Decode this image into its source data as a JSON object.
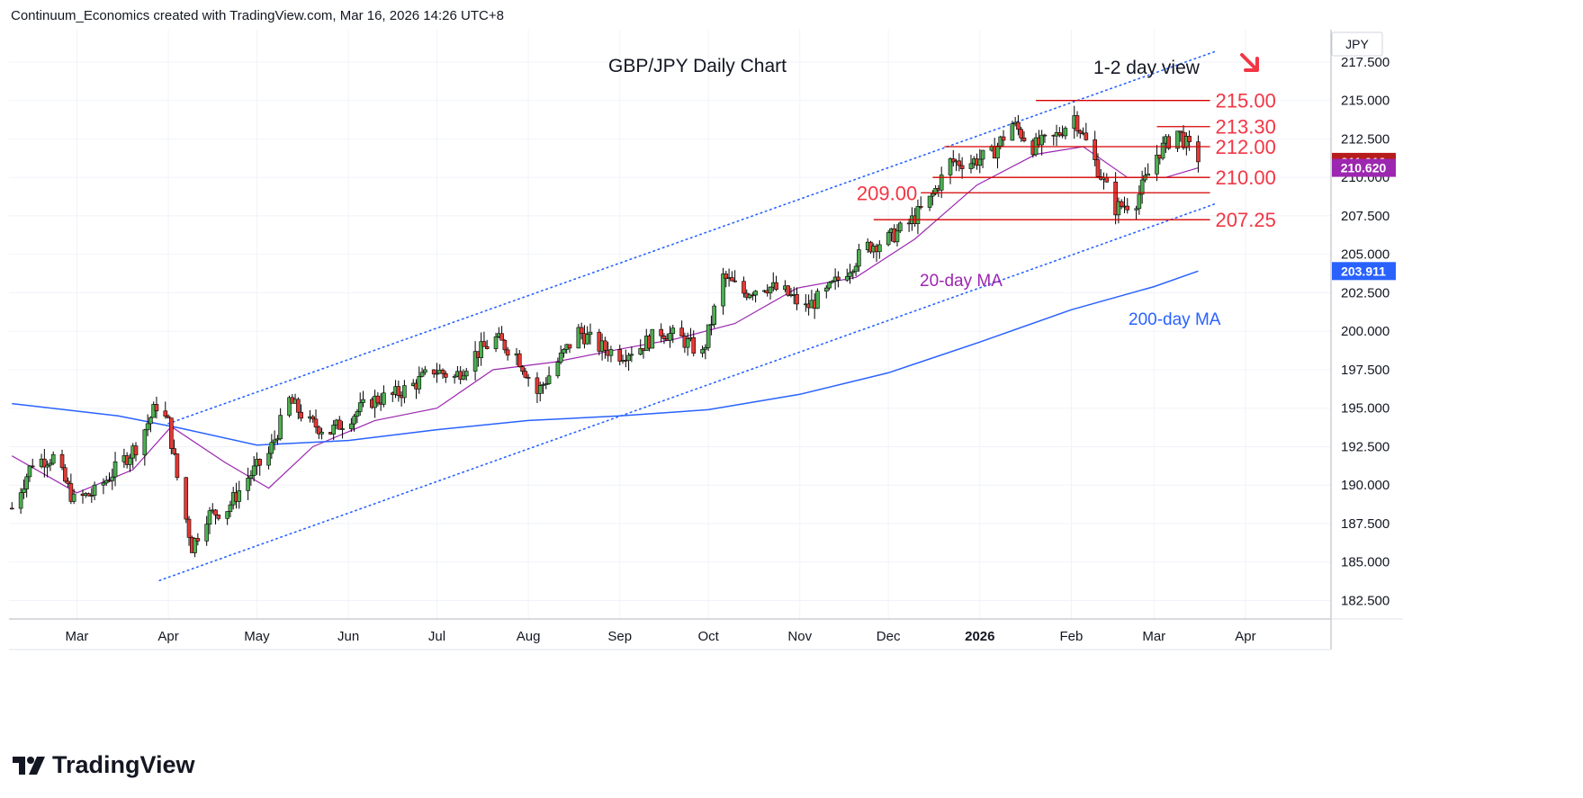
{
  "header": {
    "text": "Continuum_Economics created with TradingView.com, Mar 16, 2026 14:26 UTC+8"
  },
  "branding": {
    "logo_text": "TradingView"
  },
  "chart_data": {
    "type": "candlestick",
    "title": "GBP/JPY Daily Chart",
    "subtitle": "1-2 day view",
    "currency_label": "JPY",
    "ylim": [
      181.3,
      219.6
    ],
    "xlim": [
      "2025-02-06",
      "2026-04-30"
    ],
    "y_ticks": [
      "182.500",
      "185.000",
      "187.500",
      "190.000",
      "192.500",
      "195.000",
      "197.500",
      "200.000",
      "202.500",
      "205.000",
      "207.500",
      "210.000",
      "212.500",
      "215.000",
      "217.500"
    ],
    "x_ticks": [
      {
        "label": "Mar",
        "date": "2025-03-01"
      },
      {
        "label": "Apr",
        "date": "2025-04-01"
      },
      {
        "label": "May",
        "date": "2025-05-01"
      },
      {
        "label": "Jun",
        "date": "2025-06-01"
      },
      {
        "label": "Jul",
        "date": "2025-07-01"
      },
      {
        "label": "Aug",
        "date": "2025-08-01"
      },
      {
        "label": "Sep",
        "date": "2025-09-01"
      },
      {
        "label": "Oct",
        "date": "2025-10-01"
      },
      {
        "label": "Nov",
        "date": "2025-11-01"
      },
      {
        "label": "Dec",
        "date": "2025-12-01"
      },
      {
        "label": "2026",
        "date": "2026-01-01"
      },
      {
        "label": "Feb",
        "date": "2026-02-01"
      },
      {
        "label": "Mar",
        "date": "2026-03-01"
      },
      {
        "label": "Apr",
        "date": "2026-04-01"
      }
    ],
    "price_path": [
      [
        "2025-02-07",
        188.5
      ],
      [
        "2025-02-14",
        191.5
      ],
      [
        "2025-02-21",
        191.8
      ],
      [
        "2025-02-28",
        189.0
      ],
      [
        "2025-03-07",
        189.5
      ],
      [
        "2025-03-14",
        191.0
      ],
      [
        "2025-03-21",
        192.5
      ],
      [
        "2025-03-28",
        195.2
      ],
      [
        "2025-04-01",
        194.0
      ],
      [
        "2025-04-04",
        190.5
      ],
      [
        "2025-04-09",
        186.0
      ],
      [
        "2025-04-14",
        188.0
      ],
      [
        "2025-04-21",
        188.5
      ],
      [
        "2025-04-28",
        190.5
      ],
      [
        "2025-05-05",
        192.0
      ],
      [
        "2025-05-12",
        195.5
      ],
      [
        "2025-05-19",
        194.0
      ],
      [
        "2025-05-26",
        193.5
      ],
      [
        "2025-06-02",
        194.5
      ],
      [
        "2025-06-09",
        195.5
      ],
      [
        "2025-06-16",
        195.8
      ],
      [
        "2025-06-23",
        196.5
      ],
      [
        "2025-06-30",
        197.5
      ],
      [
        "2025-07-07",
        197.0
      ],
      [
        "2025-07-14",
        198.5
      ],
      [
        "2025-07-21",
        199.5
      ],
      [
        "2025-07-28",
        198.5
      ],
      [
        "2025-08-04",
        196.0
      ],
      [
        "2025-08-11",
        198.0
      ],
      [
        "2025-08-18",
        200.0
      ],
      [
        "2025-08-25",
        199.0
      ],
      [
        "2025-09-01",
        198.5
      ],
      [
        "2025-09-08",
        199.0
      ],
      [
        "2025-09-15",
        200.0
      ],
      [
        "2025-09-22",
        199.5
      ],
      [
        "2025-09-29",
        198.5
      ],
      [
        "2025-10-06",
        203.5
      ],
      [
        "2025-10-13",
        202.5
      ],
      [
        "2025-10-20",
        203.0
      ],
      [
        "2025-10-27",
        202.5
      ],
      [
        "2025-11-03",
        201.5
      ],
      [
        "2025-11-10",
        202.5
      ],
      [
        "2025-11-17",
        204.0
      ],
      [
        "2025-11-24",
        205.5
      ],
      [
        "2025-12-01",
        206.0
      ],
      [
        "2025-12-08",
        207.0
      ],
      [
        "2025-12-15",
        208.5
      ],
      [
        "2025-12-22",
        211.0
      ],
      [
        "2025-12-29",
        211.0
      ],
      [
        "2026-01-05",
        211.5
      ],
      [
        "2026-01-12",
        213.5
      ],
      [
        "2026-01-19",
        212.0
      ],
      [
        "2026-01-26",
        212.5
      ],
      [
        "2026-02-02",
        214.0
      ],
      [
        "2026-02-09",
        211.0
      ],
      [
        "2026-02-16",
        208.0
      ],
      [
        "2026-02-23",
        208.5
      ],
      [
        "2026-03-02",
        211.5
      ],
      [
        "2026-03-09",
        213.0
      ],
      [
        "2026-03-16",
        211.01
      ]
    ],
    "series": [
      {
        "name": "20-day MA",
        "color": "#9c27b0",
        "values": [
          [
            "2025-02-07",
            191.9
          ],
          [
            "2025-03-01",
            189.5
          ],
          [
            "2025-03-20",
            191.0
          ],
          [
            "2025-04-02",
            193.8
          ],
          [
            "2025-04-20",
            191.5
          ],
          [
            "2025-05-05",
            189.8
          ],
          [
            "2025-05-20",
            192.5
          ],
          [
            "2025-06-10",
            194.2
          ],
          [
            "2025-07-01",
            195.0
          ],
          [
            "2025-07-20",
            197.5
          ],
          [
            "2025-08-10",
            198.0
          ],
          [
            "2025-08-31",
            198.8
          ],
          [
            "2025-09-20",
            199.5
          ],
          [
            "2025-10-10",
            200.5
          ],
          [
            "2025-10-31",
            202.8
          ],
          [
            "2025-11-20",
            203.5
          ],
          [
            "2025-12-10",
            206.0
          ],
          [
            "2025-12-31",
            209.5
          ],
          [
            "2026-01-20",
            211.5
          ],
          [
            "2026-02-05",
            212.0
          ],
          [
            "2026-02-20",
            210.0
          ],
          [
            "2026-03-05",
            210.0
          ],
          [
            "2026-03-16",
            210.62
          ]
        ]
      },
      {
        "name": "200-day MA",
        "color": "#2962ff",
        "values": [
          [
            "2025-02-07",
            195.3
          ],
          [
            "2025-03-15",
            194.5
          ],
          [
            "2025-04-05",
            193.7
          ],
          [
            "2025-05-01",
            192.6
          ],
          [
            "2025-06-01",
            192.9
          ],
          [
            "2025-07-01",
            193.6
          ],
          [
            "2025-08-01",
            194.2
          ],
          [
            "2025-09-01",
            194.5
          ],
          [
            "2025-10-01",
            194.9
          ],
          [
            "2025-11-01",
            195.9
          ],
          [
            "2025-12-01",
            197.3
          ],
          [
            "2026-01-01",
            199.3
          ],
          [
            "2026-02-01",
            201.4
          ],
          [
            "2026-03-01",
            202.9
          ],
          [
            "2026-03-16",
            203.911
          ]
        ]
      }
    ],
    "price_tags": [
      {
        "value": "211.010",
        "color": "#b71c1c"
      },
      {
        "value": "210.620",
        "color": "#9c27b0"
      },
      {
        "value": "203.911",
        "color": "#2962ff"
      }
    ],
    "levels": [
      {
        "label": "215.00",
        "value": 215.0,
        "from": "2026-01-20",
        "to": "2026-03-20"
      },
      {
        "label": "213.30",
        "value": 213.3,
        "from": "2026-03-02",
        "to": "2026-03-20"
      },
      {
        "label": "212.00",
        "value": 212.0,
        "from": "2025-12-20",
        "to": "2026-03-20"
      },
      {
        "label": "210.00",
        "value": 210.0,
        "from": "2025-12-16",
        "to": "2026-03-20"
      },
      {
        "label": "209.00",
        "value": 209.0,
        "from": "2025-12-12",
        "to": "2026-03-20"
      },
      {
        "label": "207.25",
        "value": 207.25,
        "from": "2025-11-26",
        "to": "2026-03-20"
      }
    ],
    "channel": [
      {
        "from": [
          "2025-04-01",
          194.0
        ],
        "to": [
          "2026-03-22",
          218.2
        ]
      },
      {
        "from": [
          "2025-03-29",
          183.8
        ],
        "to": [
          "2026-03-22",
          208.3
        ]
      }
    ],
    "annotations": [
      {
        "text": "20-day MA",
        "color": "#9c27b0"
      },
      {
        "text": "200-day MA",
        "color": "#2962ff"
      }
    ]
  }
}
